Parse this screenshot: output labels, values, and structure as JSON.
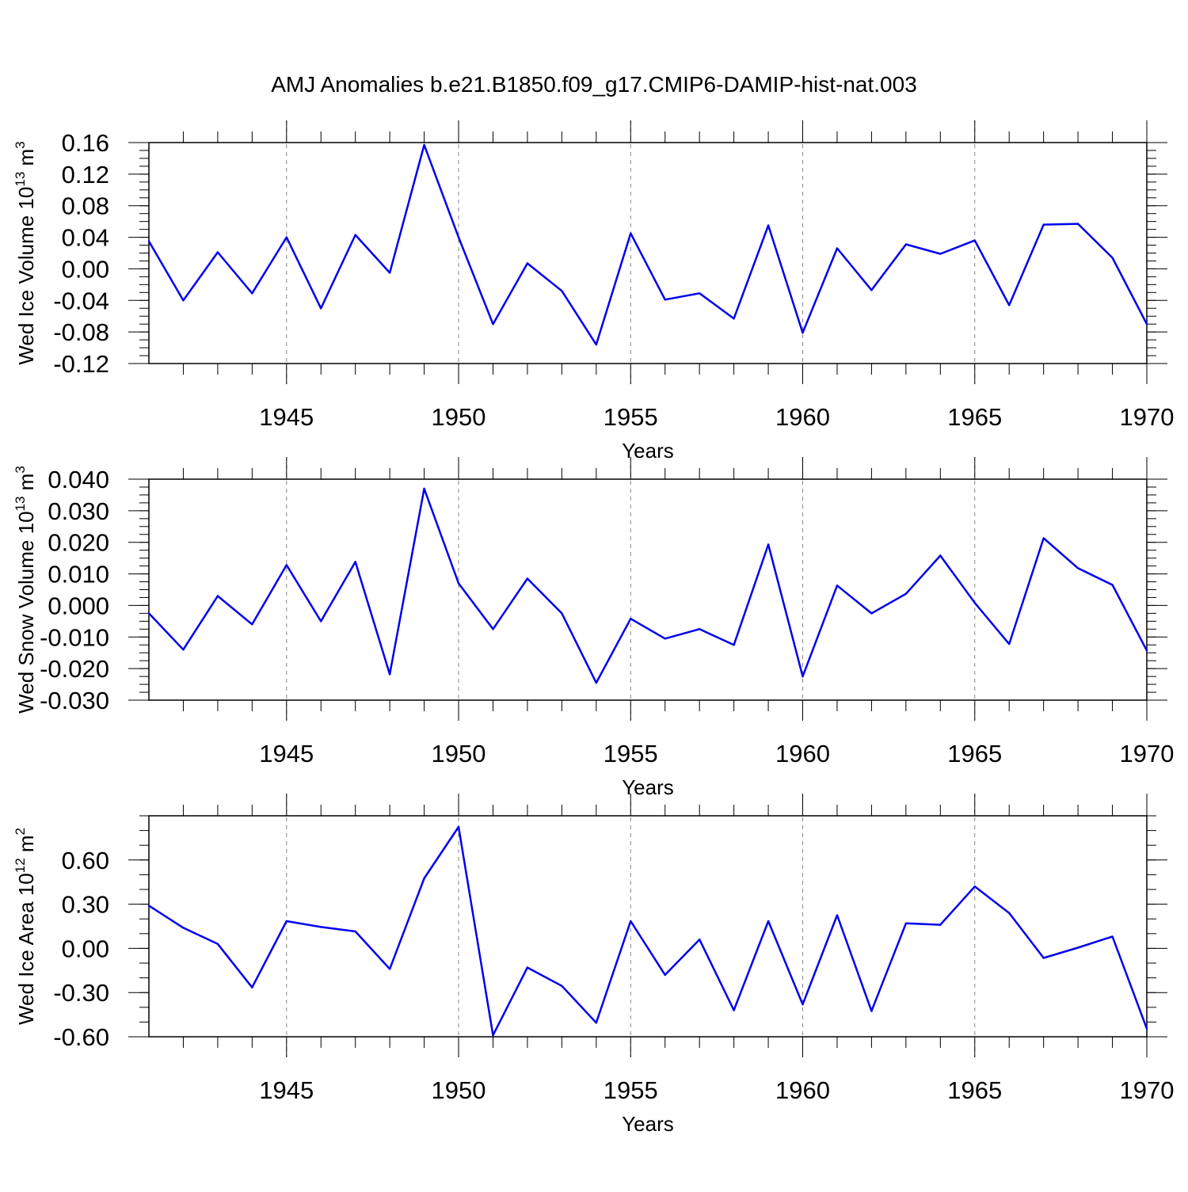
{
  "chart_data": {
    "type": "line",
    "title": "AMJ Anomalies b.e21.B1850.f09_g17.CMIP6-DAMIP-hist-nat.003",
    "line_color": "#0000ee",
    "grid_color": "#888888",
    "x": [
      1941,
      1942,
      1943,
      1944,
      1945,
      1946,
      1947,
      1948,
      1949,
      1950,
      1951,
      1952,
      1953,
      1954,
      1955,
      1956,
      1957,
      1958,
      1959,
      1960,
      1961,
      1962,
      1963,
      1964,
      1965,
      1966,
      1967,
      1968,
      1969,
      1970
    ],
    "xlim": [
      1941,
      1970
    ],
    "xticks": [
      1945,
      1950,
      1955,
      1960,
      1965,
      1970
    ],
    "xtick_labels": [
      "1945",
      "1950",
      "1955",
      "1960",
      "1965",
      "1970"
    ],
    "vertical_grid": [
      1945,
      1950,
      1955,
      1960,
      1965
    ],
    "panels": [
      {
        "name": "ice-volume",
        "xlabel": "Years",
        "ylabel_main": "Wed Ice Volume 10",
        "ylabel_exp": "13",
        "ylabel_unit": " m",
        "ylabel_unit_exp": "3",
        "ylim": [
          -0.12,
          0.16
        ],
        "yticks": [
          -0.12,
          -0.08,
          -0.04,
          0.0,
          0.04,
          0.08,
          0.12,
          0.16
        ],
        "ytick_labels": [
          "-0.12",
          "-0.08",
          "-0.04",
          "0.00",
          "0.04",
          "0.08",
          "0.12",
          "0.16"
        ],
        "minor_step": 0.01,
        "values": [
          0.035,
          -0.04,
          0.021,
          -0.031,
          0.04,
          -0.05,
          0.043,
          -0.005,
          0.157,
          0.04,
          -0.07,
          0.007,
          -0.028,
          -0.096,
          0.045,
          -0.039,
          -0.031,
          -0.063,
          0.055,
          -0.081,
          0.026,
          -0.027,
          0.031,
          0.019,
          0.036,
          -0.046,
          0.056,
          0.057,
          0.014,
          -0.07
        ]
      },
      {
        "name": "snow-volume",
        "xlabel": "Years",
        "ylabel_main": "Wed Snow Volume 10",
        "ylabel_exp": "13",
        "ylabel_unit": " m",
        "ylabel_unit_exp": "3",
        "ylim": [
          -0.03,
          0.04
        ],
        "yticks": [
          -0.03,
          -0.02,
          -0.01,
          0.0,
          0.01,
          0.02,
          0.03,
          0.04
        ],
        "ytick_labels": [
          "-0.030",
          "-0.020",
          "-0.010",
          "0.000",
          "0.010",
          "0.020",
          "0.030",
          "0.040"
        ],
        "minor_step": 0.0025,
        "values": [
          -0.0025,
          -0.014,
          0.003,
          -0.006,
          0.0128,
          -0.005,
          0.0138,
          -0.0218,
          0.037,
          0.007,
          -0.0075,
          0.0085,
          -0.0025,
          -0.0245,
          -0.0042,
          -0.0105,
          -0.0075,
          -0.0125,
          0.0193,
          -0.0225,
          0.0063,
          -0.0025,
          0.0037,
          0.0158,
          0.0008,
          -0.0122,
          0.0213,
          0.0118,
          0.0065,
          -0.0143
        ]
      },
      {
        "name": "ice-area",
        "xlabel": "Years",
        "ylabel_main": "Wed Ice Area 10",
        "ylabel_exp": "12",
        "ylabel_unit": " m",
        "ylabel_unit_exp": "2",
        "ylim": [
          -0.6,
          0.9
        ],
        "yticks": [
          -0.6,
          -0.3,
          0.0,
          0.3,
          0.6
        ],
        "ytick_labels": [
          "-0.60",
          "-0.30",
          "0.00",
          "0.30",
          "0.60"
        ],
        "minor_step": 0.1,
        "values": [
          0.29,
          0.14,
          0.03,
          -0.265,
          0.185,
          0.145,
          0.115,
          -0.14,
          0.475,
          0.825,
          -0.59,
          -0.13,
          -0.255,
          -0.505,
          0.185,
          -0.18,
          0.06,
          -0.42,
          0.185,
          -0.38,
          0.225,
          -0.425,
          0.17,
          0.16,
          0.42,
          0.24,
          -0.065,
          0.005,
          0.08,
          -0.545
        ]
      }
    ]
  }
}
